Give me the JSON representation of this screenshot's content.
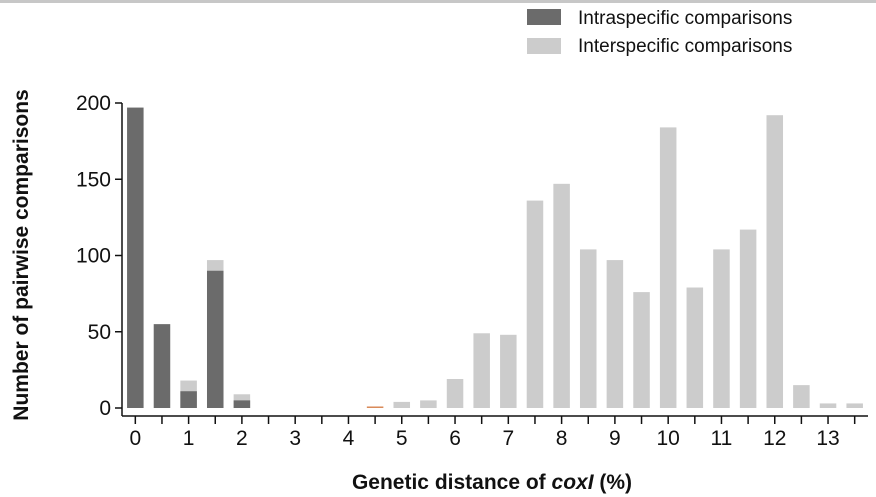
{
  "chart_data": {
    "type": "bar",
    "xlabel_prefix": "Genetic distance of ",
    "xlabel_italic": "coxI",
    "xlabel_suffix": " (%)",
    "ylabel": "Number of pairwise comparisons",
    "ylim": [
      0,
      200
    ],
    "yticks": [
      0,
      50,
      100,
      150,
      200
    ],
    "xticks": [
      0,
      1,
      2,
      3,
      4,
      5,
      6,
      7,
      8,
      9,
      10,
      11,
      12,
      13
    ],
    "bin_width": 0.5,
    "x": [
      0,
      0.5,
      1,
      1.5,
      2,
      2.5,
      3,
      3.5,
      4,
      4.5,
      5,
      5.5,
      6,
      6.5,
      7,
      7.5,
      8,
      8.5,
      9,
      9.5,
      10,
      10.5,
      11,
      11.5,
      12,
      12.5,
      13,
      13.5
    ],
    "series": [
      {
        "name": "Intraspecific comparisons",
        "color": "#6b6b6b",
        "values": [
          197,
          55,
          11,
          90,
          5,
          0,
          0,
          0,
          0,
          0,
          0,
          0,
          0,
          0,
          0,
          0,
          0,
          0,
          0,
          0,
          0,
          0,
          0,
          0,
          0,
          0,
          0,
          0
        ]
      },
      {
        "name": "Interspecific comparisons",
        "color": "#cccccc",
        "values": [
          0,
          0,
          18,
          97,
          9,
          0,
          0,
          0,
          0,
          1,
          4,
          5,
          19,
          49,
          48,
          136,
          147,
          104,
          97,
          76,
          184,
          79,
          104,
          117,
          192,
          15,
          3,
          3
        ]
      }
    ],
    "highlight_color": "#d98b5a",
    "highlight_bin": 4.5,
    "legend_position": "top-right"
  }
}
